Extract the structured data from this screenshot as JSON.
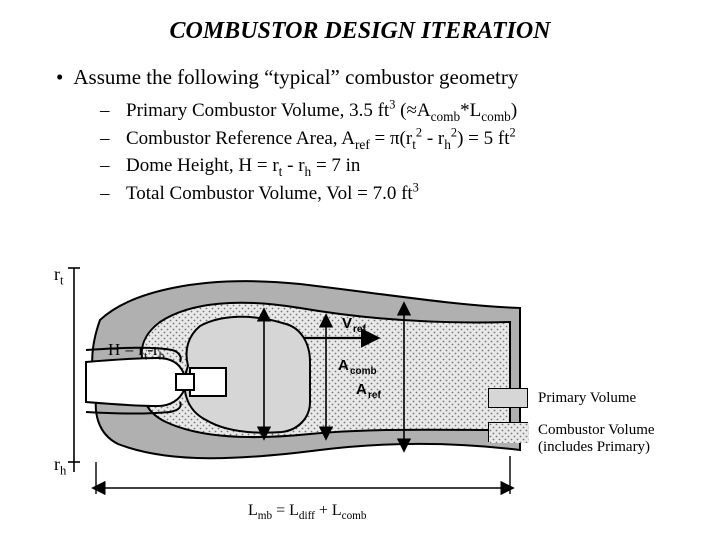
{
  "title": "COMBUSTOR DESIGN ITERATION",
  "main_bullet": "Assume the following “typical” combustor geometry",
  "sub_bullets": [
    "Primary Combustor Volume, 3.5 ft<sup>3</sup> (≈A<sub>comb</sub>*L<sub>comb</sub>)",
    "Combustor Reference Area, A<sub>ref</sub> = π(r<sub>t</sub><sup>2</sup> - r<sub>h</sub><sup>2</sup>) = 5 ft<sup>2</sup>",
    "Dome Height, H = r<sub>t</sub> - r<sub>h</sub> = 7 in",
    "Total Combustor Volume, Vol = 7.0 ft<sup>3</sup>"
  ],
  "diagram": {
    "rt_label": "r<sub>t</sub>",
    "rh_label": "r<sub>h</sub>",
    "H_label": "H = r<sub>t</sub>-r<sub>h</sub>",
    "Lmb_label": "L<sub>mb</sub> = L<sub>diff</sub> + L<sub>comb</sub>",
    "vref_label": "V<sub>ref</sub>",
    "acomb_label": "A<sub>comb</sub>",
    "aref_label": "A<sub>ref</sub>",
    "legend": {
      "primary": {
        "label": "Primary Volume",
        "fill": "#d6d6d6"
      },
      "combustor": {
        "label": "Combustor Volume (includes Primary)",
        "fill": "#e9e9e9",
        "pattern": "dots"
      }
    },
    "colors": {
      "outline": "#000000",
      "outer_body": "#b0b0b0",
      "light_fill": "#e9e9e9",
      "primary_fill": "#d6d6d6",
      "background": "#ffffff"
    }
  }
}
